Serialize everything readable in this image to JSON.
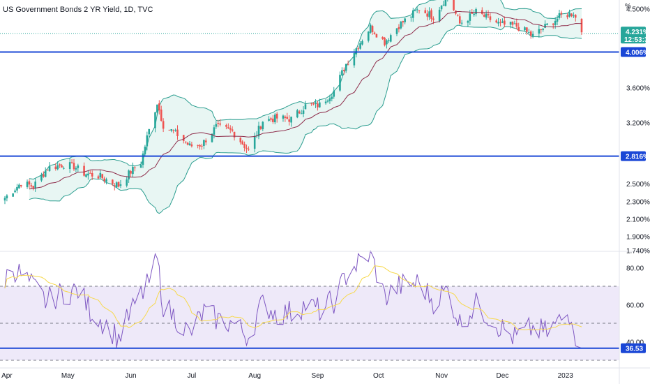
{
  "header": {
    "title": "US Government Bonds 2 YR Yield, 1D, TVC",
    "unit_symbol": "%"
  },
  "colors": {
    "up": "#26a69a",
    "down": "#ef5350",
    "band_line": "#2a9d8f",
    "band_fill": "#e8f6f3",
    "basis": "#8e2d4b",
    "hline": "#1a47d6",
    "rsi_line": "#7e57c2",
    "rsi_ma": "#f7d94c",
    "rsi_band": "#eee9f9",
    "grid_dash": "#787b86",
    "price_tag": "#26a69a",
    "axis_text": "#131722"
  },
  "price_axis": {
    "ticks": [
      "4.500%",
      "3.600%",
      "3.200%",
      "2.500%",
      "2.300%",
      "2.100%",
      "1.900%",
      "1.740%"
    ],
    "last_price_label": "4.231%",
    "countdown_label": "12:53:31",
    "level_labels": [
      "4.006%",
      "2.816%"
    ]
  },
  "rsi_axis": {
    "ticks": [
      "80.00",
      "60.00",
      "40.00"
    ],
    "last_label": "36.53"
  },
  "time_axis": {
    "labels": [
      "Apr",
      "May",
      "Jun",
      "Jul",
      "Aug",
      "Sep",
      "Oct",
      "Nov",
      "Dec",
      "2023"
    ]
  },
  "chart_data": {
    "type": "candlestick",
    "title": "US Government Bonds 2 YR Yield, 1D, TVC",
    "x_range": [
      "2022-03-31",
      "2023-01-09"
    ],
    "y_range_percent": [
      1.68,
      4.56
    ],
    "price_anchors": [
      {
        "date": "2022-03-31",
        "close": 2.34
      },
      {
        "date": "2022-04-08",
        "close": 2.51
      },
      {
        "date": "2022-04-14",
        "close": 2.47
      },
      {
        "date": "2022-04-21",
        "close": 2.68
      },
      {
        "date": "2022-04-29",
        "close": 2.72
      },
      {
        "date": "2022-05-04",
        "close": 2.7
      },
      {
        "date": "2022-05-09",
        "close": 2.62
      },
      {
        "date": "2022-05-16",
        "close": 2.59
      },
      {
        "date": "2022-05-26",
        "close": 2.48
      },
      {
        "date": "2022-06-01",
        "close": 2.64
      },
      {
        "date": "2022-06-06",
        "close": 2.74
      },
      {
        "date": "2022-06-09",
        "close": 3.03
      },
      {
        "date": "2022-06-14",
        "close": 3.43
      },
      {
        "date": "2022-06-17",
        "close": 3.17
      },
      {
        "date": "2022-06-24",
        "close": 3.06
      },
      {
        "date": "2022-06-30",
        "close": 2.93
      },
      {
        "date": "2022-07-06",
        "close": 2.95
      },
      {
        "date": "2022-07-13",
        "close": 3.15
      },
      {
        "date": "2022-07-21",
        "close": 3.1
      },
      {
        "date": "2022-07-29",
        "close": 2.88
      },
      {
        "date": "2022-08-05",
        "close": 3.22
      },
      {
        "date": "2022-08-12",
        "close": 3.25
      },
      {
        "date": "2022-08-19",
        "close": 3.24
      },
      {
        "date": "2022-08-26",
        "close": 3.39
      },
      {
        "date": "2022-09-02",
        "close": 3.4
      },
      {
        "date": "2022-09-09",
        "close": 3.56
      },
      {
        "date": "2022-09-15",
        "close": 3.87
      },
      {
        "date": "2022-09-22",
        "close": 4.12
      },
      {
        "date": "2022-09-27",
        "close": 4.29
      },
      {
        "date": "2022-10-04",
        "close": 4.12
      },
      {
        "date": "2022-10-11",
        "close": 4.31
      },
      {
        "date": "2022-10-21",
        "close": 4.5
      },
      {
        "date": "2022-10-28",
        "close": 4.41
      },
      {
        "date": "2022-11-04",
        "close": 4.66
      },
      {
        "date": "2022-11-10",
        "close": 4.33
      },
      {
        "date": "2022-11-18",
        "close": 4.46
      },
      {
        "date": "2022-11-30",
        "close": 4.32
      },
      {
        "date": "2022-12-08",
        "close": 4.3
      },
      {
        "date": "2022-12-16",
        "close": 4.19
      },
      {
        "date": "2022-12-23",
        "close": 4.31
      },
      {
        "date": "2022-12-30",
        "close": 4.42
      },
      {
        "date": "2023-01-05",
        "close": 4.45
      },
      {
        "date": "2023-01-09",
        "close": 4.231
      }
    ],
    "bollinger_period": 20,
    "horizontal_levels": [
      4.006,
      2.816
    ],
    "last_price": 4.231,
    "rsi": {
      "ylim": [
        30,
        90
      ],
      "upper_band": 70,
      "mid": 50,
      "lower_band": 30,
      "last": 36.53,
      "anchors": [
        {
          "date": "2022-03-31",
          "value": 74
        },
        {
          "date": "2022-04-04",
          "value": 80
        },
        {
          "date": "2022-04-11",
          "value": 73
        },
        {
          "date": "2022-04-20",
          "value": 62
        },
        {
          "date": "2022-04-28",
          "value": 66
        },
        {
          "date": "2022-05-06",
          "value": 68
        },
        {
          "date": "2022-05-12",
          "value": 57
        },
        {
          "date": "2022-05-19",
          "value": 50
        },
        {
          "date": "2022-05-26",
          "value": 42
        },
        {
          "date": "2022-06-03",
          "value": 60
        },
        {
          "date": "2022-06-09",
          "value": 70
        },
        {
          "date": "2022-06-14",
          "value": 84
        },
        {
          "date": "2022-06-17",
          "value": 60
        },
        {
          "date": "2022-06-24",
          "value": 52
        },
        {
          "date": "2022-06-30",
          "value": 44
        },
        {
          "date": "2022-07-07",
          "value": 56
        },
        {
          "date": "2022-07-14",
          "value": 52
        },
        {
          "date": "2022-07-21",
          "value": 50
        },
        {
          "date": "2022-07-29",
          "value": 43
        },
        {
          "date": "2022-08-05",
          "value": 61
        },
        {
          "date": "2022-08-12",
          "value": 55
        },
        {
          "date": "2022-08-19",
          "value": 56
        },
        {
          "date": "2022-08-26",
          "value": 60
        },
        {
          "date": "2022-09-02",
          "value": 57
        },
        {
          "date": "2022-09-09",
          "value": 62
        },
        {
          "date": "2022-09-16",
          "value": 78
        },
        {
          "date": "2022-09-23",
          "value": 84
        },
        {
          "date": "2022-09-27",
          "value": 88
        },
        {
          "date": "2022-10-04",
          "value": 64
        },
        {
          "date": "2022-10-11",
          "value": 70
        },
        {
          "date": "2022-10-21",
          "value": 72
        },
        {
          "date": "2022-10-28",
          "value": 62
        },
        {
          "date": "2022-11-04",
          "value": 68
        },
        {
          "date": "2022-11-10",
          "value": 50
        },
        {
          "date": "2022-11-18",
          "value": 60
        },
        {
          "date": "2022-11-30",
          "value": 48
        },
        {
          "date": "2022-12-07",
          "value": 42
        },
        {
          "date": "2022-12-15",
          "value": 47
        },
        {
          "date": "2022-12-23",
          "value": 45
        },
        {
          "date": "2022-12-30",
          "value": 52
        },
        {
          "date": "2023-01-04",
          "value": 56
        },
        {
          "date": "2023-01-06",
          "value": 44
        },
        {
          "date": "2023-01-09",
          "value": 36.53
        }
      ],
      "ma_period": 14
    },
    "legend": "none"
  }
}
